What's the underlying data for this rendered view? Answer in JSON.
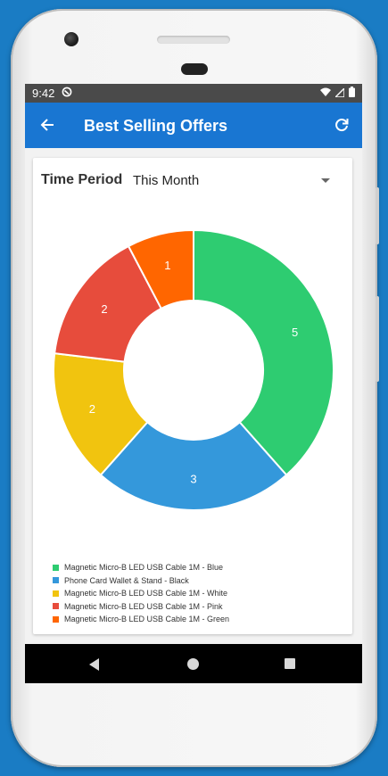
{
  "status_bar": {
    "time": "9:42"
  },
  "app_bar": {
    "title": "Best Selling Offers"
  },
  "filter": {
    "label": "Time Period",
    "value": "This Month"
  },
  "chart_data": {
    "type": "pie",
    "donut": true,
    "title": "",
    "legend_position": "bottom-left",
    "slices": [
      {
        "label": "Magnetic Micro-B LED USB Cable 1M - Blue",
        "value": 5,
        "color": "#2ecc71"
      },
      {
        "label": "Phone Card Wallet & Stand - Black",
        "value": 3,
        "color": "#3498db"
      },
      {
        "label": "Magnetic Micro-B LED USB Cable 1M - White",
        "value": 2,
        "color": "#f1c40f"
      },
      {
        "label": "Magnetic Micro-B LED USB Cable 1M - Pink",
        "value": 2,
        "color": "#e74c3c"
      },
      {
        "label": "Magnetic Micro-B LED USB Cable 1M - Green",
        "value": 1,
        "color": "#ff6600"
      }
    ]
  }
}
